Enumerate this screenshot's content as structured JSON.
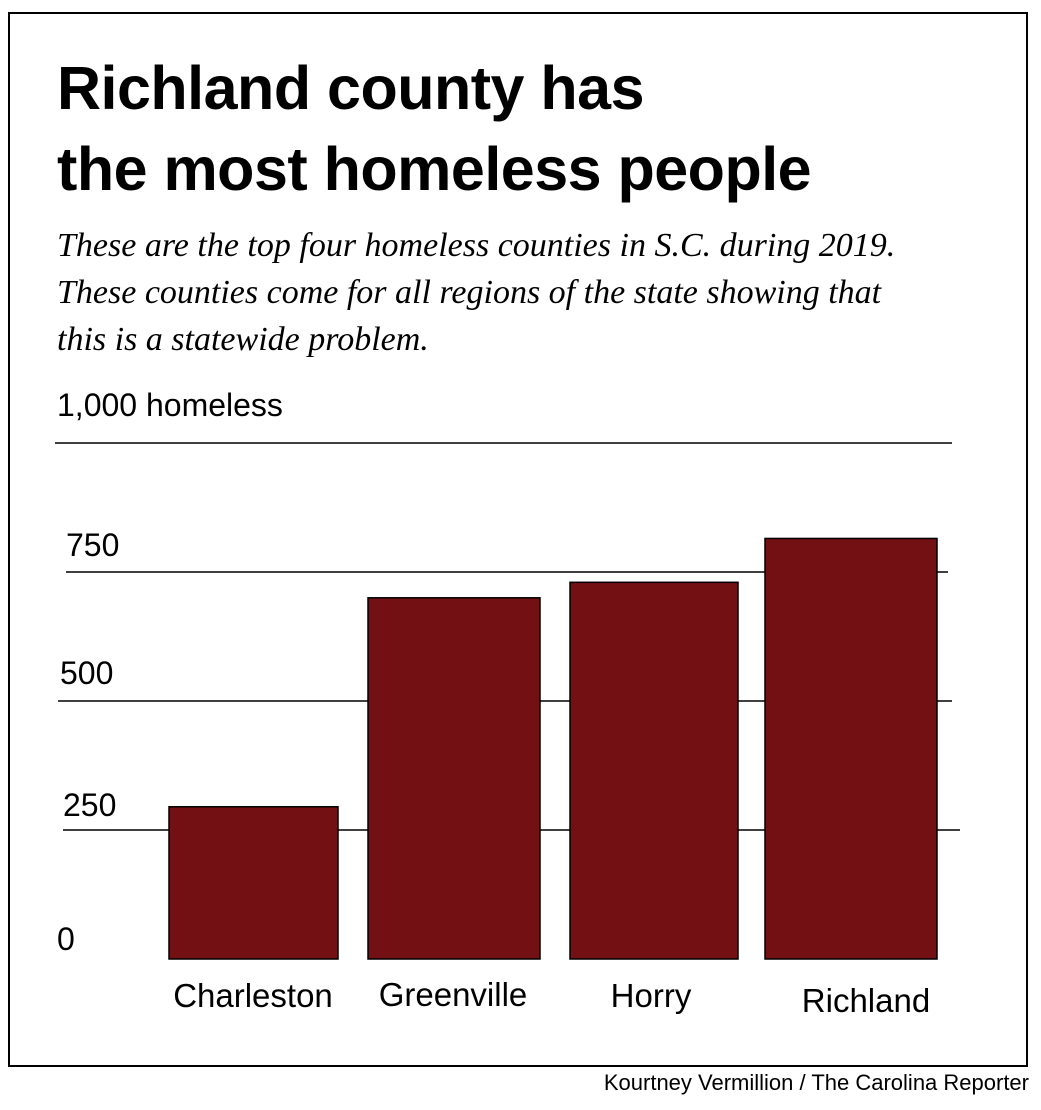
{
  "title": {
    "line1": "Richland county has",
    "line2": "the most homeless people"
  },
  "subtitle": {
    "line1": "These are the top four homeless counties in S.C. during 2019.",
    "line2": "These counties come for all regions of the state showing that",
    "line3": "this is a statewide problem."
  },
  "credit": "Kourtney Vermillion / The Carolina Reporter",
  "colors": {
    "bar": "#731013",
    "bar_outline": "#000000",
    "gridline": "#000000"
  },
  "chart_data": {
    "type": "bar",
    "title": "Richland county has the most homeless people",
    "categories": [
      "Charleston",
      "Greenville",
      "Horry",
      "Richland"
    ],
    "values": [
      295,
      700,
      730,
      815
    ],
    "ylim": [
      0,
      1000
    ],
    "yticks": [
      0,
      250,
      500,
      750,
      1000
    ],
    "ytick_labels": [
      "0",
      "250",
      "500",
      "750",
      "1,000 homeless"
    ],
    "xlabel": "",
    "ylabel": "",
    "grid": true,
    "legend": "none"
  }
}
